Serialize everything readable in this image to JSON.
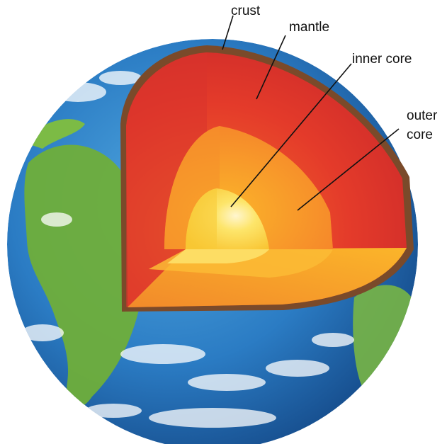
{
  "diagram": {
    "labels": {
      "crust": "crust",
      "mantle": "mantle",
      "inner_core": "inner core",
      "outer_core_line1": "outer",
      "outer_core_line2": "core"
    }
  }
}
